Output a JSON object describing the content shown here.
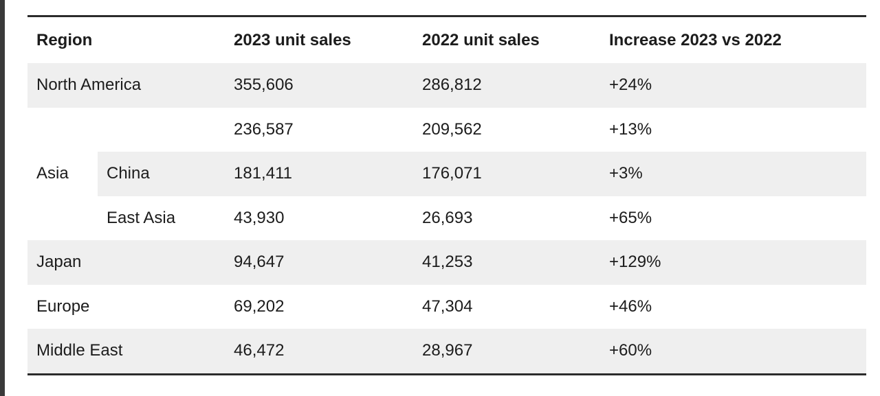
{
  "table": {
    "headers": {
      "region": "Region",
      "sales_2023": "2023 unit sales",
      "sales_2022": "2022 unit sales",
      "increase": "Increase 2023 vs 2022"
    },
    "rows": {
      "north_america": {
        "region": "North America",
        "sales_2023": "355,606",
        "sales_2022": "286,812",
        "increase": "+24%"
      },
      "asia": {
        "region": "Asia",
        "total": {
          "sales_2023": "236,587",
          "sales_2022": "209,562",
          "increase": "+13%"
        },
        "china": {
          "subregion": "China",
          "sales_2023": "181,411",
          "sales_2022": "176,071",
          "increase": "+3%"
        },
        "east_asia": {
          "subregion": "East Asia",
          "sales_2023": "43,930",
          "sales_2022": "26,693",
          "increase": "+65%"
        }
      },
      "japan": {
        "region": "Japan",
        "sales_2023": "94,647",
        "sales_2022": "41,253",
        "increase": "+129%"
      },
      "europe": {
        "region": "Europe",
        "sales_2023": "69,202",
        "sales_2022": "47,304",
        "increase": "+46%"
      },
      "middle_east": {
        "region": "Middle East",
        "sales_2023": "46,472",
        "sales_2022": "28,967",
        "increase": "+60%"
      }
    },
    "colors": {
      "shaded_row": "#efefef",
      "rule": "#2b2b2b",
      "text": "#1c1c1c"
    }
  }
}
